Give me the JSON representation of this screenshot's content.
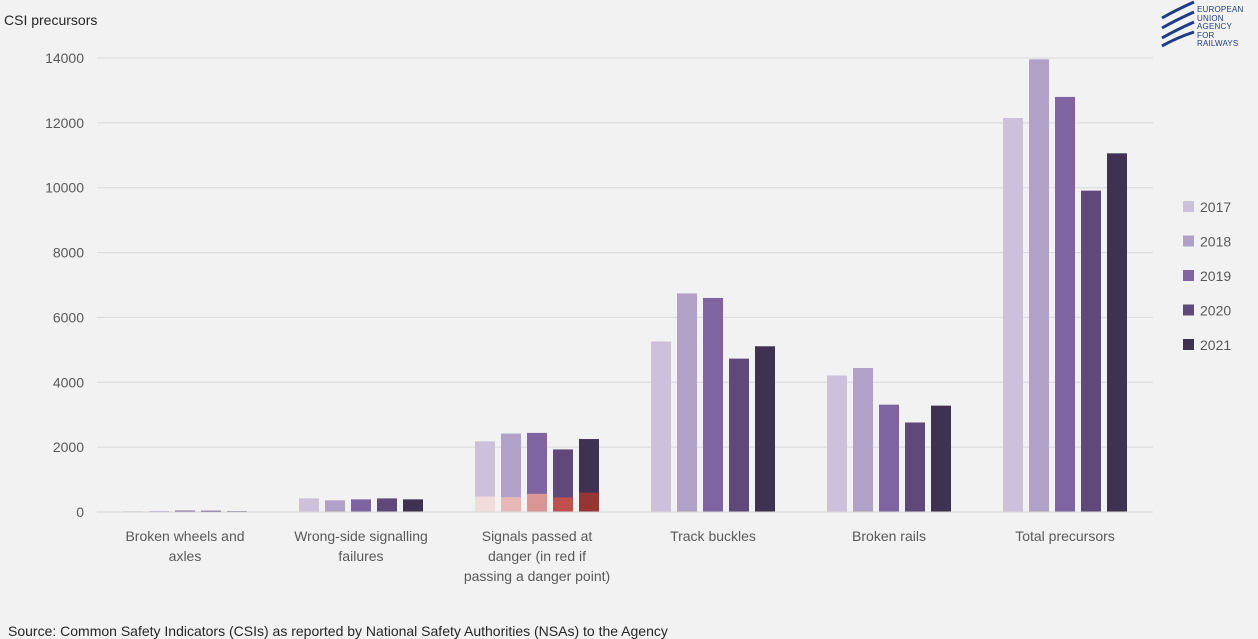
{
  "chart_data": {
    "type": "bar",
    "ylabel": "CSI precursors",
    "ylim": [
      0,
      14000
    ],
    "y_ticks": [
      "0",
      "2000",
      "4000",
      "6000",
      "8000",
      "10000",
      "12000",
      "14000"
    ],
    "grid": true,
    "legend_position": "right",
    "categories": [
      [
        "Broken wheels and",
        "axles"
      ],
      [
        "Wrong-side signalling",
        "failures"
      ],
      [
        "Signals passed at",
        "danger (in red if",
        "passing a danger point)"
      ],
      [
        "Track buckles"
      ],
      [
        "Broken rails"
      ],
      [
        "Total precursors"
      ]
    ],
    "series": [
      {
        "name": "2017",
        "color": "#ccc0da",
        "values": [
          25,
          420,
          2180,
          5260,
          4210,
          12150
        ]
      },
      {
        "name": "2018",
        "color": "#b1a0c7",
        "values": [
          30,
          360,
          2420,
          6740,
          4440,
          13960
        ]
      },
      {
        "name": "2019",
        "color": "#8064a2",
        "values": [
          45,
          390,
          2440,
          6600,
          3310,
          12800
        ]
      },
      {
        "name": "2020",
        "color": "#5f497a",
        "values": [
          40,
          420,
          1930,
          4730,
          2760,
          9910
        ]
      },
      {
        "name": "2021",
        "color": "#3f3151",
        "values": [
          25,
          390,
          2250,
          5110,
          3280,
          11060
        ]
      }
    ],
    "red_overlay": {
      "category_index": 2,
      "values": [
        480,
        460,
        560,
        450,
        600
      ],
      "colors": [
        "#f2dcdb",
        "#e6b8b7",
        "#da9694",
        "#c0504d",
        "#963634"
      ]
    }
  },
  "source_text": "Source: Common Safety Indicators (CSIs) as reported by National Safety Authorities (NSAs) to the Agency",
  "logo": {
    "lines": [
      "EUROPEAN",
      "UNION",
      "AGENCY",
      "FOR RAILWAYS"
    ],
    "color": "#1f3c88"
  }
}
